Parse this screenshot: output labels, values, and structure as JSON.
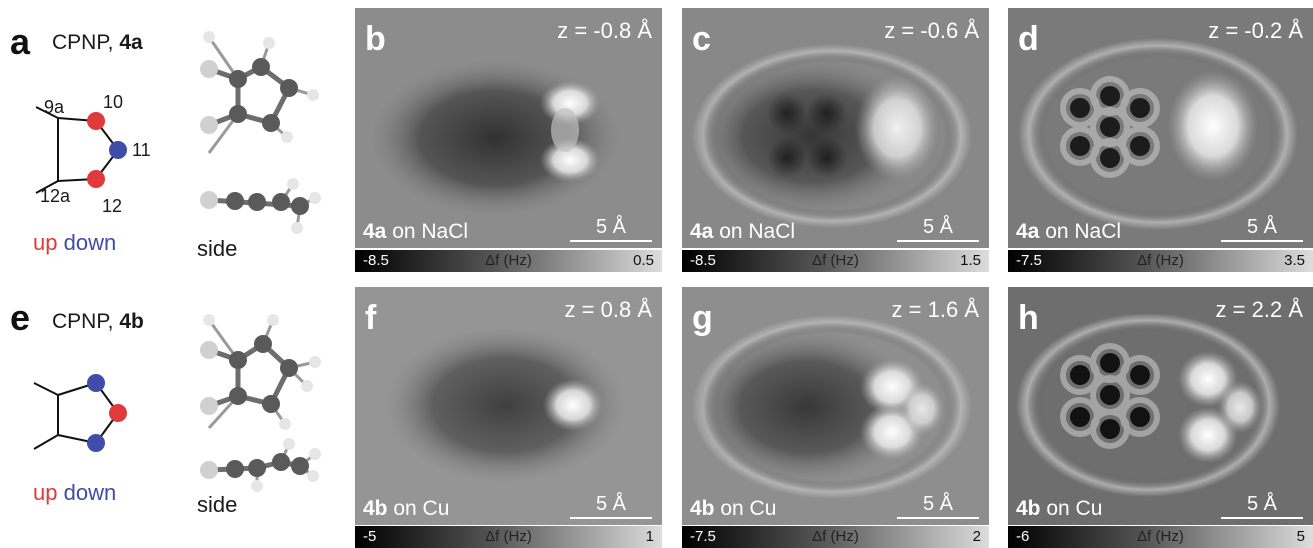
{
  "left": {
    "a": {
      "letter": "a",
      "title_prefix": "CPNP, ",
      "title_bold": "4a",
      "atoms": [
        "9a",
        "10",
        "11",
        "12a",
        "12"
      ],
      "legend_up": "up",
      "legend_down": "down",
      "side_label": "side"
    },
    "e": {
      "letter": "e",
      "title_prefix": "CPNP, ",
      "title_bold": "4b",
      "legend_up": "up",
      "legend_down": "down",
      "side_label": "side"
    }
  },
  "colors": {
    "up": "#e03a3a",
    "down": "#3f4ca8"
  },
  "panels": [
    {
      "letter": "b",
      "z": "z = -0.8 Å",
      "mol": "4a",
      "surface": " on NaCl",
      "scale": "5 Å",
      "cmin": "-8.5",
      "clabel": "Δf (Hz)",
      "cmax": "0.5"
    },
    {
      "letter": "c",
      "z": "z = -0.6 Å",
      "mol": "4a",
      "surface": " on NaCl",
      "scale": "5 Å",
      "cmin": "-8.5",
      "clabel": "Δf (Hz)",
      "cmax": "1.5"
    },
    {
      "letter": "d",
      "z": "z = -0.2 Å",
      "mol": "4a",
      "surface": " on NaCl",
      "scale": "5 Å",
      "cmin": "-7.5",
      "clabel": "Δf (Hz)",
      "cmax": "3.5"
    },
    {
      "letter": "f",
      "z": "z = 0.8 Å",
      "mol": "4b",
      "surface": " on Cu",
      "scale": "5 Å",
      "cmin": "-5",
      "clabel": "Δf (Hz)",
      "cmax": "1"
    },
    {
      "letter": "g",
      "z": "z = 1.6 Å",
      "mol": "4b",
      "surface": " on Cu",
      "scale": "5 Å",
      "cmin": "-7.5",
      "clabel": "Δf (Hz)",
      "cmax": "2"
    },
    {
      "letter": "h",
      "z": "z = 2.2 Å",
      "mol": "4b",
      "surface": " on Cu",
      "scale": "5 Å",
      "cmin": "-6",
      "clabel": "Δf (Hz)",
      "cmax": "5"
    }
  ]
}
